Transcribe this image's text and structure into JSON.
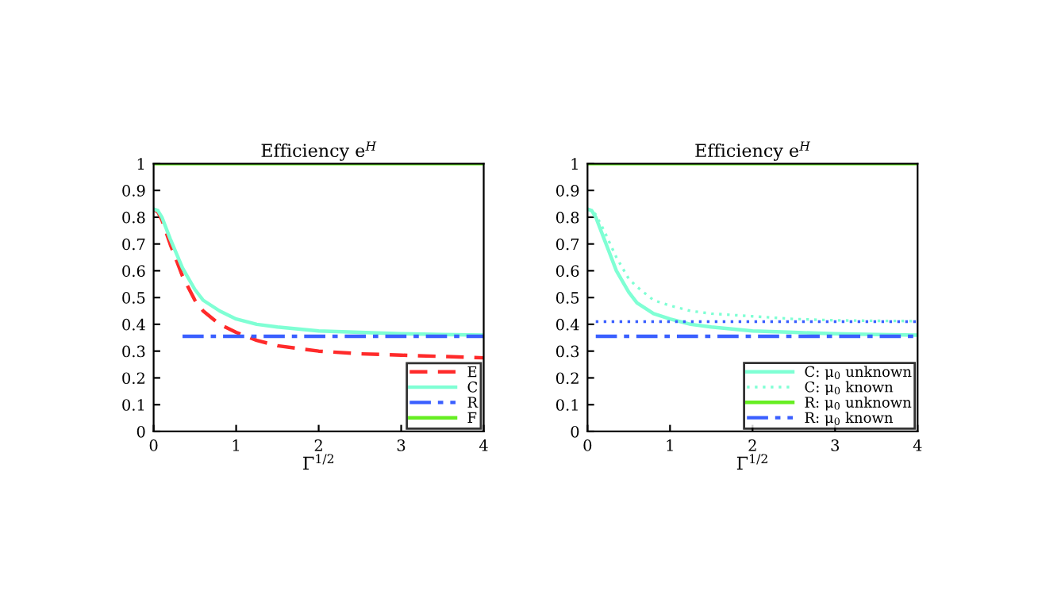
{
  "chart_data": [
    {
      "type": "line",
      "title": "Efficiency e$^{H}$",
      "xlabel": "Γ$^{1/2}$",
      "xlim": [
        0,
        4
      ],
      "ylim": [
        0,
        1
      ],
      "xticks": [
        0,
        1,
        2,
        3,
        4
      ],
      "yticks": [
        0,
        0.1,
        0.2,
        0.3,
        0.4,
        0.5,
        0.6,
        0.7,
        0.8,
        0.9,
        1
      ],
      "grid": false,
      "legend": "bottom right",
      "x": [
        0,
        0.05,
        0.1,
        0.2,
        0.35,
        0.5,
        0.6,
        0.8,
        1,
        1.25,
        1.5,
        2,
        2.5,
        3,
        3.5,
        4
      ],
      "series": [
        {
          "name": "E",
          "color": "#ff2a2a",
          "line_style": "dashed",
          "values": [
            0.83,
            0.82,
            0.79,
            0.7,
            0.58,
            0.49,
            0.45,
            0.4,
            0.37,
            0.34,
            0.32,
            0.3,
            0.29,
            0.285,
            0.28,
            0.275
          ]
        },
        {
          "name": "C",
          "color": "#7fffd4",
          "line_style": "solid",
          "values": [
            0.83,
            0.825,
            0.8,
            0.72,
            0.61,
            0.53,
            0.49,
            0.45,
            0.42,
            0.4,
            0.39,
            0.375,
            0.37,
            0.365,
            0.362,
            0.36
          ]
        },
        {
          "name": "R",
          "color": "#3a5fff",
          "line_style": "dashdot",
          "values": [
            null,
            null,
            null,
            null,
            0.355,
            0.355,
            0.355,
            0.355,
            0.355,
            0.355,
            0.355,
            0.355,
            0.355,
            0.355,
            0.355,
            0.355
          ]
        },
        {
          "name": "F",
          "color": "#66ee22",
          "line_style": "solid",
          "values": [
            1,
            1,
            1,
            1,
            1,
            1,
            1,
            1,
            1,
            1,
            1,
            1,
            1,
            1,
            1,
            1
          ]
        }
      ]
    },
    {
      "type": "line",
      "title": "Efficiency e$^{H}$",
      "xlabel": "Γ$^{1/2}$",
      "xlim": [
        0,
        4
      ],
      "ylim": [
        0,
        1
      ],
      "xticks": [
        0,
        1,
        2,
        3,
        4
      ],
      "yticks": [
        0,
        0.1,
        0.2,
        0.3,
        0.4,
        0.5,
        0.6,
        0.7,
        0.8,
        0.9,
        1
      ],
      "grid": false,
      "legend": "bottom right",
      "x": [
        0,
        0.05,
        0.1,
        0.2,
        0.35,
        0.5,
        0.6,
        0.8,
        1,
        1.25,
        1.5,
        2,
        2.5,
        3,
        3.5,
        4
      ],
      "series": [
        {
          "name": "C: μ$_{0}$ unknown",
          "color": "#7fffd4",
          "line_style": "solid",
          "values": [
            0.83,
            0.825,
            0.8,
            0.72,
            0.6,
            0.52,
            0.48,
            0.44,
            0.42,
            0.4,
            0.39,
            0.375,
            0.37,
            0.365,
            0.362,
            0.36
          ]
        },
        {
          "name": "C: μ$_{0}$ known",
          "color": "#7fffd4",
          "line_style": "dotted",
          "values": [
            0.83,
            0.825,
            0.81,
            0.75,
            0.65,
            0.57,
            0.54,
            0.49,
            0.47,
            0.45,
            0.44,
            0.43,
            0.42,
            0.415,
            0.413,
            0.412
          ]
        },
        {
          "name": "R: μ$_{0}$ unknown",
          "color": "#66ee22",
          "line_style": "solid",
          "values": [
            1,
            1,
            1,
            1,
            1,
            1,
            1,
            1,
            1,
            1,
            1,
            1,
            1,
            1,
            1,
            1
          ]
        },
        {
          "name": "R: μ$_{0}$ known",
          "color": "#3a5fff",
          "line_style": "dashdot",
          "values": [
            null,
            null,
            0.355,
            0.355,
            0.355,
            0.355,
            0.355,
            0.355,
            0.355,
            0.355,
            0.355,
            0.355,
            0.355,
            0.355,
            0.355,
            0.355
          ]
        },
        {
          "color": "#3a5fff",
          "line_style": "dotted",
          "values": [
            null,
            null,
            0.41,
            0.41,
            0.41,
            0.41,
            0.41,
            0.41,
            0.41,
            0.41,
            0.41,
            0.41,
            0.41,
            0.41,
            0.41,
            0.41
          ]
        }
      ]
    }
  ]
}
